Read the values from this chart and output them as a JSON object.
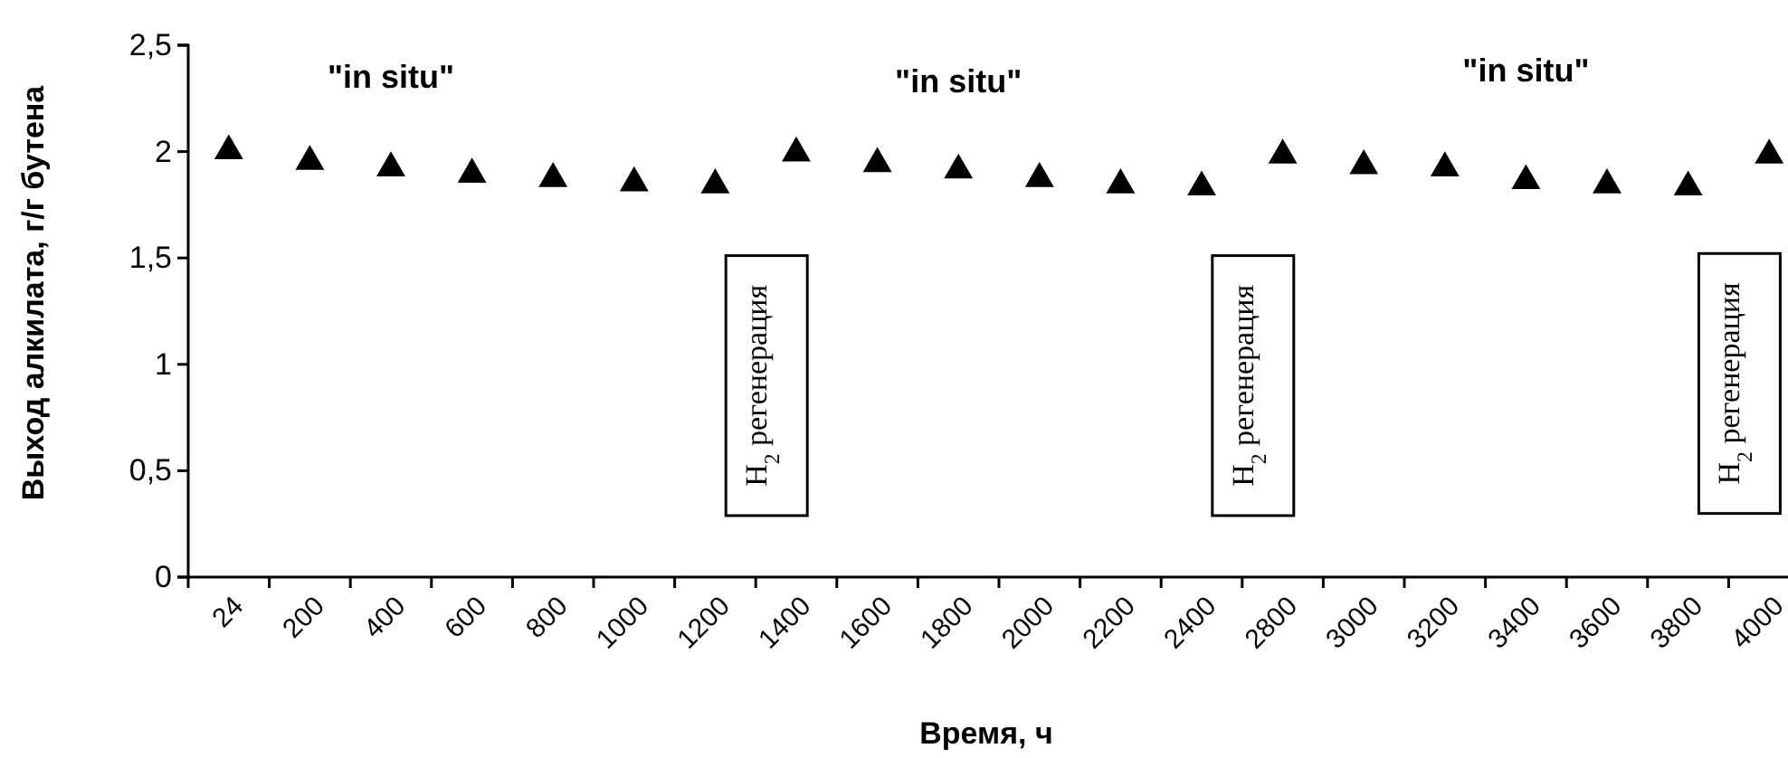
{
  "chart_data": {
    "type": "scatter",
    "xlabel": "Время, ч",
    "ylabel": "Выход алкилата, г/г бутена",
    "categories": [
      "24",
      "200",
      "400",
      "600",
      "800",
      "1000",
      "1200",
      "1400",
      "1600",
      "1800",
      "2000",
      "2200",
      "2400",
      "2800",
      "3000",
      "3200",
      "3400",
      "3600",
      "3800",
      "4000"
    ],
    "series": [
      {
        "color": "#000000",
        "values": [
          2.02,
          1.97,
          1.94,
          1.91,
          1.89,
          1.87,
          1.86,
          2.01,
          1.96,
          1.93,
          1.89,
          1.86,
          1.85,
          2.0,
          1.95,
          1.94,
          1.88,
          1.86,
          1.85,
          2.0
        ]
      }
    ],
    "ylim": [
      0,
      2.5
    ],
    "yticks": [
      0,
      {
        "value": 0.5,
        "label": "0,5"
      },
      1,
      {
        "value": 1.5,
        "label": "1,5"
      },
      2,
      {
        "value": 2.5,
        "label": "2,5"
      }
    ],
    "marker": "triangle",
    "grid": false,
    "annotations": [
      "\"in situ\"",
      "\"in situ\"",
      "\"in situ\"",
      "H$_{2}$ регенерация",
      "H$_{2}$ регенерация",
      "H$_{2}$ регенерация"
    ]
  }
}
